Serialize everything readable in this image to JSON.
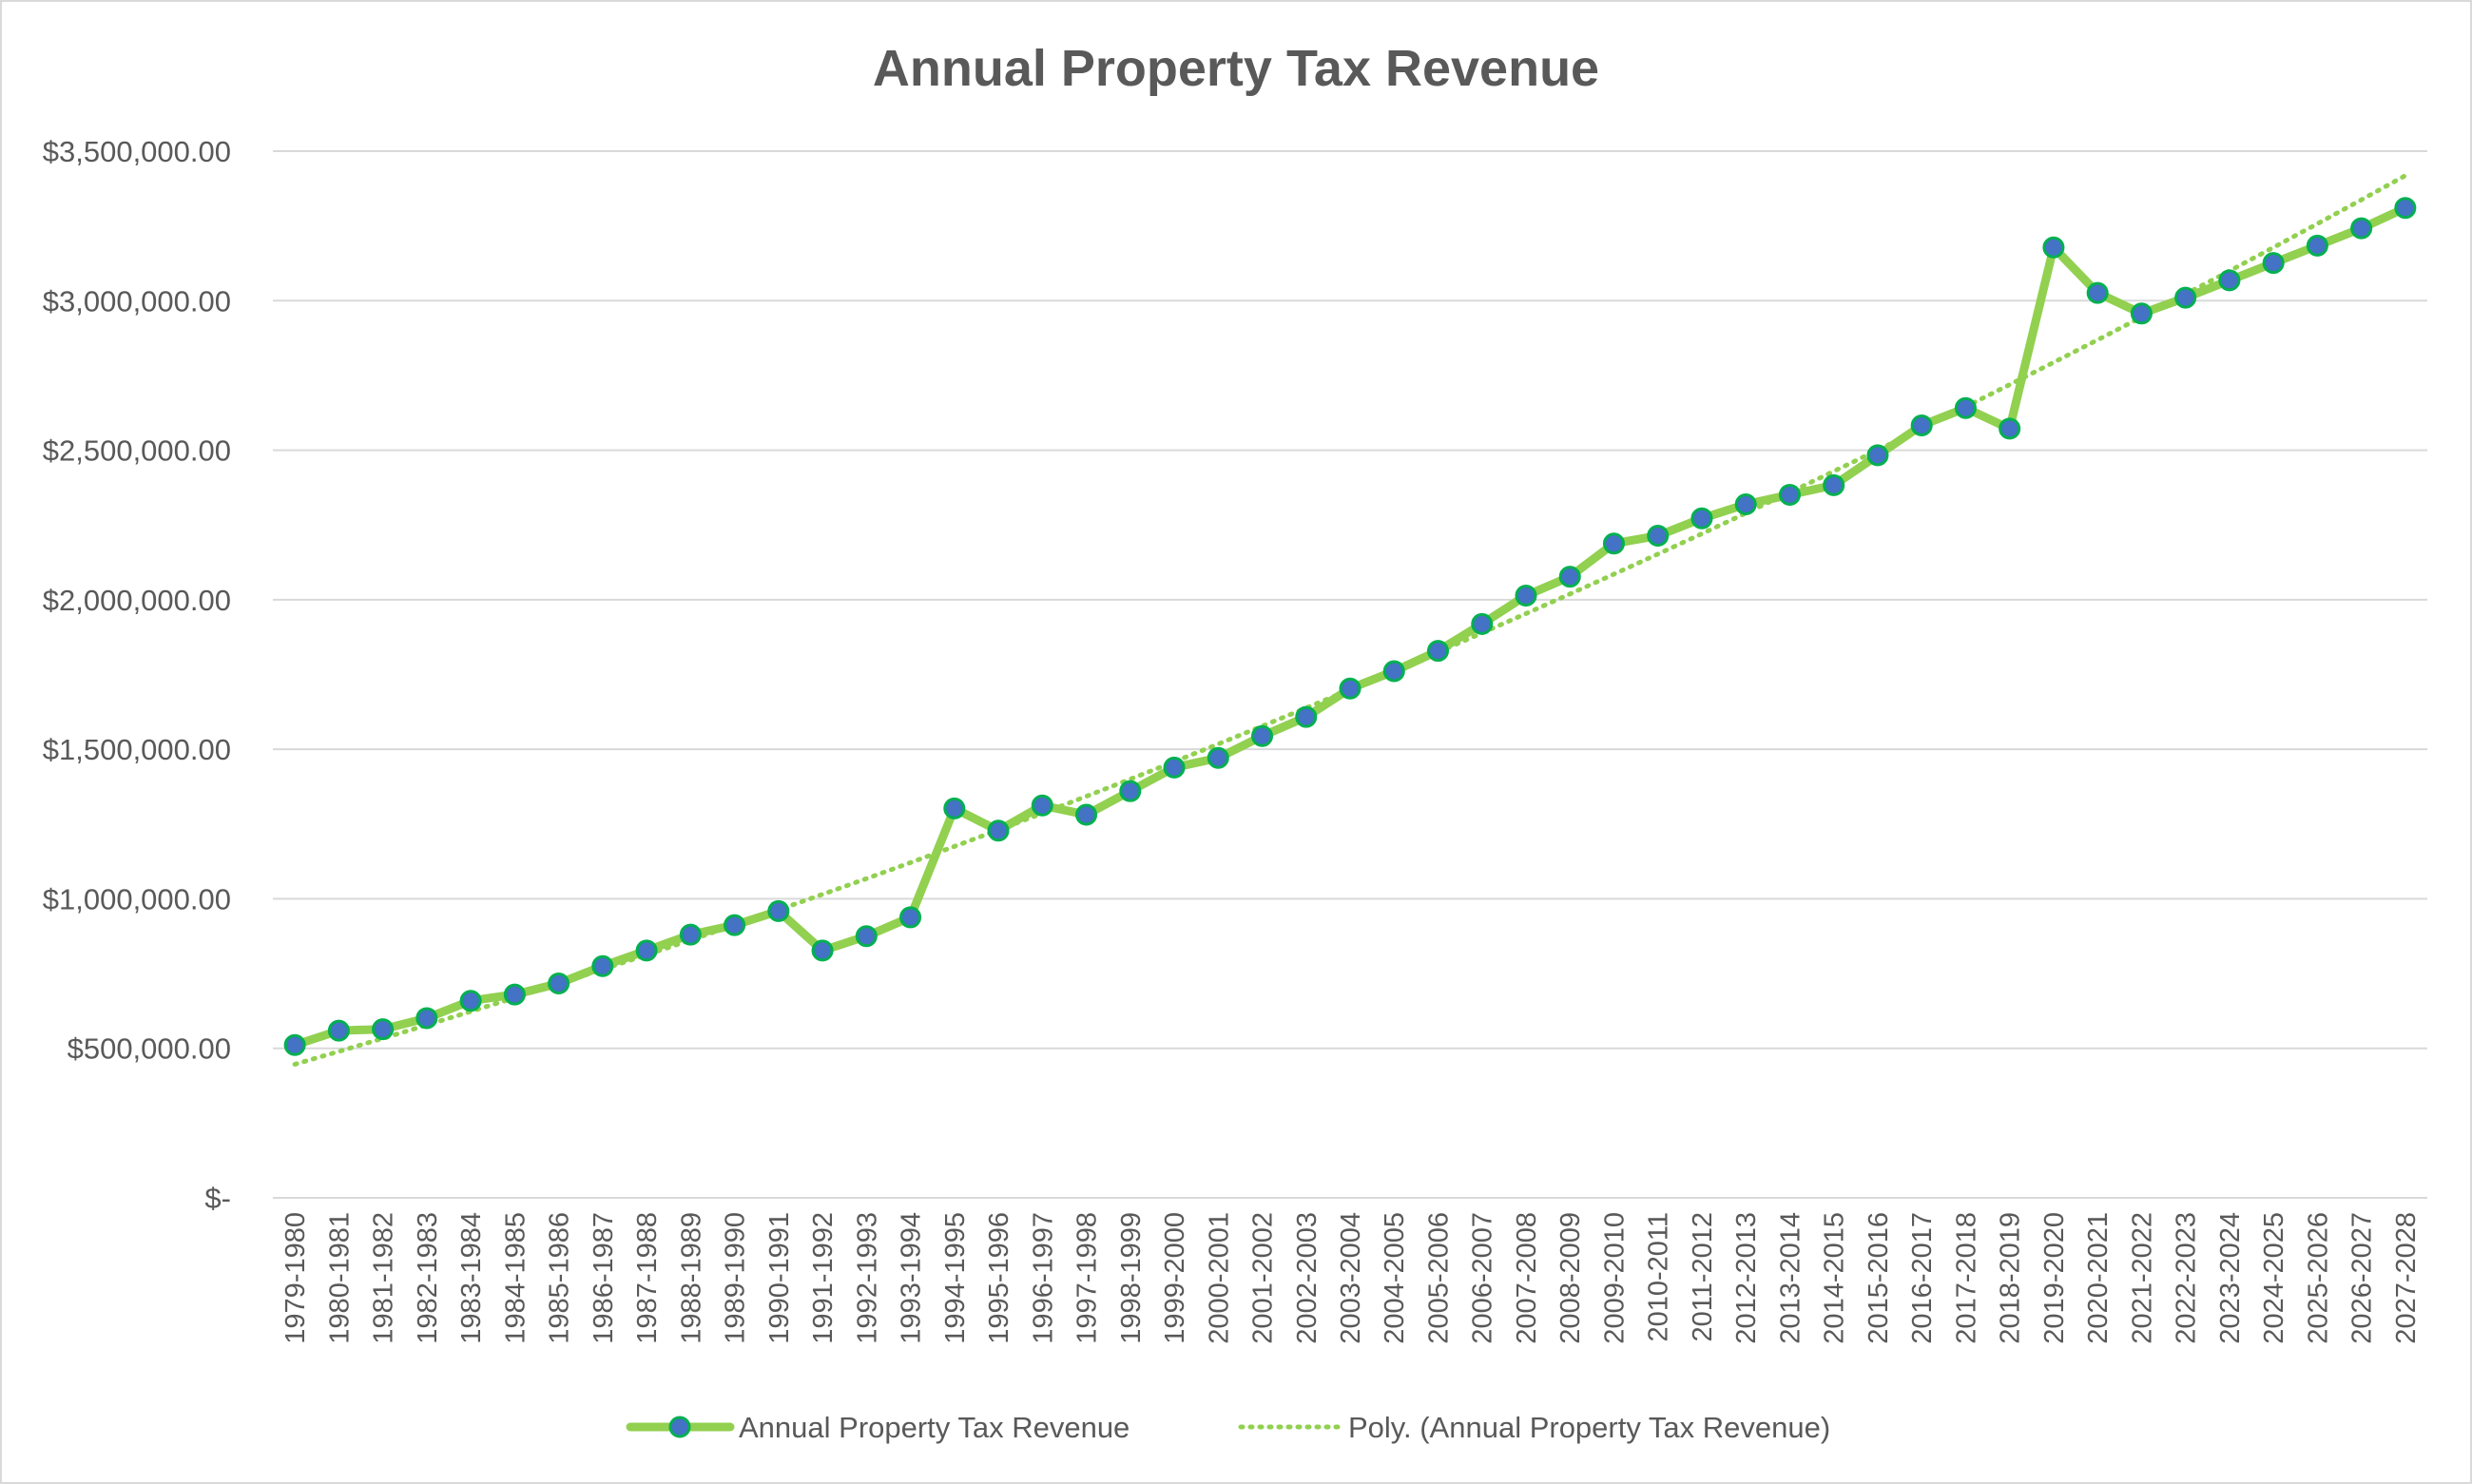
{
  "chart_data": {
    "type": "line",
    "title": "Annual Property Tax Revenue",
    "xlabel": "",
    "ylabel": "",
    "ylim": [
      0,
      3500000
    ],
    "yticks": [
      0,
      500000,
      1000000,
      1500000,
      2000000,
      2500000,
      3000000,
      3500000
    ],
    "ytick_labels": [
      "$-",
      "$500,000.00",
      "$1,000,000.00",
      "$1,500,000.00",
      "$2,000,000.00",
      "$2,500,000.00",
      "$3,000,000.00",
      "$3,500,000.00"
    ],
    "grid": true,
    "legend_position": "bottom",
    "categories": [
      "1979-1980",
      "1980-1981",
      "1981-1982",
      "1982-1983",
      "1983-1984",
      "1984-1985",
      "1985-1986",
      "1986-1987",
      "1987-1988",
      "1988-1989",
      "1989-1990",
      "1990-1991",
      "1991-1992",
      "1992-1993",
      "1993-1994",
      "1994-1995",
      "1995-1996",
      "1996-1997",
      "1997-1998",
      "1998-1999",
      "1999-2000",
      "2000-2001",
      "2001-2002",
      "2002-2003",
      "2003-2004",
      "2004-2005",
      "2005-2006",
      "2006-2007",
      "2007-2008",
      "2008-2009",
      "2009-2010",
      "2010-2011",
      "2011-2012",
      "2012-2013",
      "2013-2014",
      "2014-2015",
      "2015-2016",
      "2016-2017",
      "2017-2018",
      "2018-2019",
      "2019-2020",
      "2020-2021",
      "2021-2022",
      "2022-2023",
      "2023-2024",
      "2024-2025",
      "2025-2026",
      "2026-2027",
      "2027-2028"
    ],
    "series": [
      {
        "name": "Annual Property Tax Revenue",
        "color": "#92D050",
        "marker_fill": "#4472C4",
        "marker_edge": "#00B050",
        "values": [
          511000,
          559000,
          564000,
          601000,
          659000,
          680000,
          717000,
          775000,
          827000,
          880000,
          912000,
          959000,
          827000,
          875000,
          938000,
          1302000,
          1228000,
          1312000,
          1281000,
          1360000,
          1439000,
          1471000,
          1544000,
          1608000,
          1703000,
          1761000,
          1829000,
          1919000,
          2014000,
          2077000,
          2188000,
          2214000,
          2272000,
          2319000,
          2351000,
          2383000,
          2483000,
          2583000,
          2641000,
          2572000,
          3178000,
          3026000,
          2957000,
          3010000,
          3068000,
          3126000,
          3184000,
          3242000,
          3310000
        ]
      }
    ],
    "trendline": {
      "name": "Poly. (Annual Property Tax Revenue)",
      "type": "polynomial",
      "order": 2,
      "color": "#92D050",
      "style": "dotted"
    }
  }
}
